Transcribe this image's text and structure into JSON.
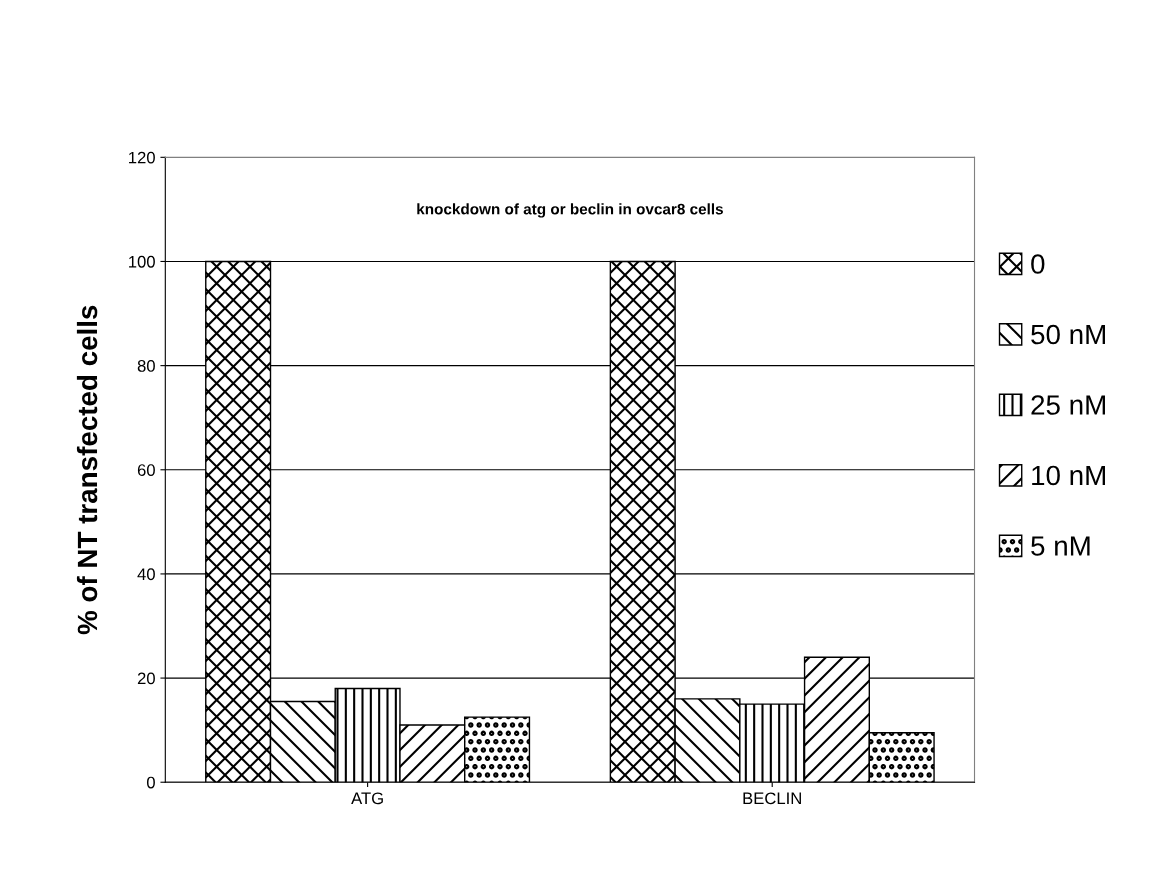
{
  "chart_data": {
    "type": "bar",
    "title": "knockdown of atg or beclin in ovcar8 cells",
    "ylabel": "% of NT transfected cells",
    "categories": [
      "ATG",
      "BECLIN"
    ],
    "series": [
      {
        "name": "0",
        "color": "#000000",
        "values": [
          100,
          100
        ]
      },
      {
        "name": "50 nM",
        "color": "#000000",
        "values": [
          15.5,
          16
        ]
      },
      {
        "name": "25 nM",
        "color": "#000000",
        "values": [
          18,
          15
        ]
      },
      {
        "name": "10 nM",
        "color": "#000000",
        "values": [
          11,
          24
        ]
      },
      {
        "name": "5 nM",
        "color": "#000000",
        "values": [
          12.5,
          9.5
        ]
      }
    ],
    "ylim": [
      0,
      120
    ],
    "yticks": [
      0,
      20,
      40,
      60,
      80,
      100,
      120
    ],
    "grid": "y",
    "legend": "right"
  }
}
